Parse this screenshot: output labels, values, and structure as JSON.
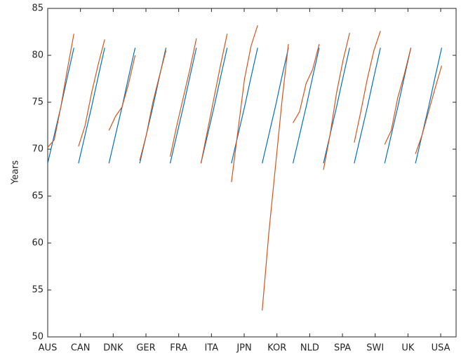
{
  "chart_data": {
    "type": "line",
    "ylabel": "Years",
    "x": [
      1,
      1.2,
      1.4,
      1.6,
      1.8,
      1.85,
      1.94,
      2.14,
      2.34,
      2.54,
      2.74,
      2.79,
      2.87,
      3.07,
      3.27,
      3.47,
      3.67,
      3.72,
      3.81,
      4.01,
      4.21,
      4.41,
      4.61,
      4.66,
      4.74,
      4.94,
      5.14,
      5.34,
      5.54,
      5.59,
      5.68,
      5.88,
      6.08,
      6.28,
      6.48,
      6.53,
      6.61,
      6.81,
      7.01,
      7.21,
      7.41,
      7.46,
      7.55,
      7.75,
      7.95,
      8.15,
      8.35,
      8.4,
      8.49,
      8.69,
      8.89,
      9.09,
      9.29,
      9.34,
      9.42,
      9.62,
      9.82,
      10.02,
      10.22,
      10.27,
      10.36,
      10.56,
      10.76,
      10.96,
      11.16,
      11.21,
      11.29,
      11.49,
      11.69,
      11.89,
      12.09,
      12.14,
      12.23,
      12.43,
      12.63,
      12.83,
      13.03
    ],
    "series": [
      {
        "color": "#0072bd",
        "values": [
          68.5,
          71.5,
          74.5,
          77.7,
          80.8,
          null,
          68.5,
          71.5,
          74.5,
          77.7,
          80.8,
          null,
          68.5,
          71.5,
          74.5,
          77.7,
          80.8,
          null,
          68.5,
          71.5,
          74.5,
          77.7,
          80.8,
          null,
          68.5,
          71.5,
          74.5,
          77.7,
          80.8,
          null,
          68.5,
          71.5,
          74.5,
          77.7,
          80.8,
          null,
          68.5,
          71.5,
          74.5,
          77.7,
          80.8,
          null,
          68.5,
          71.5,
          74.5,
          77.7,
          80.8,
          null,
          68.5,
          71.5,
          74.5,
          77.7,
          80.8,
          null,
          68.5,
          71.5,
          74.5,
          77.7,
          80.8,
          null,
          68.5,
          71.5,
          74.5,
          77.7,
          80.8,
          null,
          68.5,
          71.5,
          74.5,
          77.7,
          80.8,
          null,
          68.5,
          71.5,
          74.5,
          77.7,
          80.8
        ]
      },
      {
        "color": "#d95319",
        "values": [
          70.2,
          71,
          74.5,
          78.5,
          82.3,
          null,
          70.3,
          72.5,
          76,
          79,
          81.7,
          null,
          72,
          73.5,
          74.5,
          77,
          80,
          null,
          68.8,
          71.5,
          75,
          77.8,
          80.5,
          null,
          69.2,
          72.5,
          75.5,
          78.5,
          81.8,
          null,
          68.5,
          72,
          75.5,
          79,
          82.3,
          null,
          66.5,
          72,
          77.5,
          81,
          83.2,
          null,
          52.8,
          61,
          68,
          75,
          81.2,
          null,
          72.8,
          74,
          77,
          78.5,
          81.2,
          null,
          67.8,
          71.5,
          76,
          79.5,
          82.4,
          null,
          70.7,
          74,
          77.5,
          80.5,
          82.6,
          null,
          70.5,
          72,
          75.5,
          78,
          80.8,
          null,
          69.5,
          71.5,
          74,
          76.5,
          78.9
        ]
      }
    ],
    "xlim": [
      1,
      13.47
    ],
    "xticks": [
      {
        "value": 1,
        "label": "AUS"
      },
      {
        "value": 2,
        "label": "CAN"
      },
      {
        "value": 3,
        "label": "DNK"
      },
      {
        "value": 4,
        "label": "GER"
      },
      {
        "value": 5,
        "label": "FRA"
      },
      {
        "value": 6,
        "label": "ITA"
      },
      {
        "value": 7,
        "label": "JPN"
      },
      {
        "value": 8,
        "label": "KOR"
      },
      {
        "value": 9,
        "label": "NLD"
      },
      {
        "value": 10,
        "label": "SPA"
      },
      {
        "value": 11,
        "label": "SWI"
      },
      {
        "value": 12,
        "label": "UK"
      },
      {
        "value": 13,
        "label": "USA"
      }
    ],
    "ylim": [
      50,
      85
    ],
    "yticks": [
      50,
      55,
      60,
      65,
      70,
      75,
      80,
      85
    ]
  }
}
